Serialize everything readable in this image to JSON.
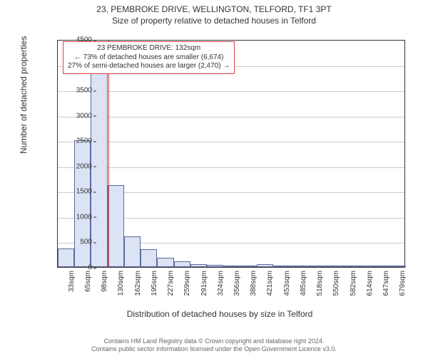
{
  "title": {
    "line1": "23, PEMBROKE DRIVE, WELLINGTON, TELFORD, TF1 3PT",
    "line2": "Size of property relative to detached houses in Telford"
  },
  "chart": {
    "type": "histogram",
    "ylabel": "Number of detached properties",
    "xlabel": "Distribution of detached houses by size in Telford",
    "ylim_max": 4500,
    "y_ticks": [
      0,
      500,
      1000,
      1500,
      2000,
      2500,
      3000,
      3500,
      4000,
      4500
    ],
    "x_tick_labels": [
      "33sqm",
      "65sqm",
      "98sqm",
      "130sqm",
      "162sqm",
      "195sqm",
      "227sqm",
      "259sqm",
      "291sqm",
      "324sqm",
      "356sqm",
      "388sqm",
      "421sqm",
      "453sqm",
      "485sqm",
      "518sqm",
      "550sqm",
      "582sqm",
      "614sqm",
      "647sqm",
      "679sqm"
    ],
    "bar_fill": "#dce3f4",
    "bar_stroke": "#5b6aa0",
    "grid_color": "#cccccc",
    "axis_color": "#333333",
    "background_color": "#ffffff",
    "bar_values": [
      370,
      2500,
      4180,
      1620,
      600,
      350,
      180,
      110,
      60,
      40,
      25,
      20,
      60,
      10,
      8,
      6,
      5,
      4,
      3,
      2,
      2
    ],
    "marker": {
      "color": "#d94040",
      "category_index_after": 3,
      "fraction_into_bin": 0.06
    },
    "annotation": {
      "line1": "23 PEMBROKE DRIVE: 132sqm",
      "line2": "← 73% of detached houses are smaller (6,674)",
      "line3": "27% of semi-detached houses are larger (2,470) →",
      "border_color": "#d94040"
    }
  },
  "footer": {
    "line1": "Contains HM Land Registry data © Crown copyright and database right 2024.",
    "line2": "Contains public sector information licensed under the Open Government Licence v3.0."
  }
}
